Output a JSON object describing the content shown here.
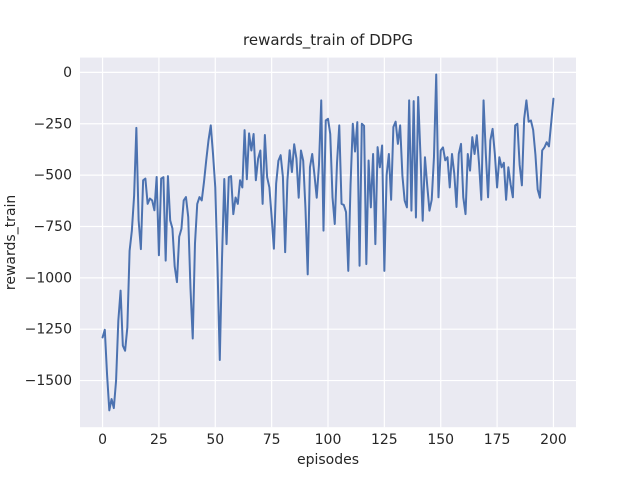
{
  "figure": {
    "title": "rewards_train of DDPG",
    "background_color": "#ffffff"
  },
  "chart_data": {
    "type": "line",
    "title": "rewards_train of DDPG",
    "xlabel": "episodes",
    "ylabel": "rewards_train",
    "legend": "none",
    "grid": true,
    "plot_bg_color": "#EAEAF2",
    "grid_color": "#ffffff",
    "line_color": "#4C72B0",
    "text_color": "#262626",
    "xlim": [
      -10,
      210
    ],
    "ylim": [
      -1727,
      72
    ],
    "x_ticks": [
      0,
      25,
      50,
      75,
      100,
      125,
      150,
      175,
      200
    ],
    "y_ticks": [
      0,
      -250,
      -500,
      -750,
      -1000,
      -1250,
      -1500
    ],
    "x_is_episode_index": true,
    "series": [
      {
        "name": "rewards_train",
        "values": [
          -1290,
          -1253,
          -1470,
          -1645,
          -1590,
          -1634,
          -1501,
          -1208,
          -1062,
          -1330,
          -1355,
          -1241,
          -868,
          -771,
          -600,
          -270,
          -720,
          -860,
          -525,
          -517,
          -640,
          -614,
          -623,
          -671,
          -509,
          -890,
          -517,
          -510,
          -916,
          -505,
          -720,
          -760,
          -945,
          -1021,
          -800,
          -761,
          -623,
          -607,
          -704,
          -1050,
          -1295,
          -834,
          -640,
          -607,
          -623,
          -533,
          -427,
          -330,
          -258,
          -397,
          -560,
          -950,
          -1400,
          -901,
          -519,
          -836,
          -510,
          -505,
          -690,
          -609,
          -640,
          -525,
          -560,
          -281,
          -520,
          -297,
          -380,
          -300,
          -525,
          -420,
          -380,
          -640,
          -305,
          -510,
          -560,
          -704,
          -858,
          -541,
          -430,
          -403,
          -509,
          -875,
          -525,
          -379,
          -485,
          -350,
          -420,
          -610,
          -380,
          -430,
          -660,
          -983,
          -462,
          -397,
          -500,
          -610,
          -450,
          -136,
          -770,
          -234,
          -226,
          -300,
          -608,
          -738,
          -440,
          -258,
          -640,
          -645,
          -680,
          -966,
          -547,
          -250,
          -385,
          -242,
          -941,
          -250,
          -260,
          -933,
          -429,
          -657,
          -397,
          -836,
          -364,
          -462,
          -356,
          -966,
          -500,
          -397,
          -620,
          -266,
          -240,
          -348,
          -258,
          -502,
          -624,
          -657,
          -136,
          -673,
          -140,
          -706,
          -120,
          -400,
          -722,
          -413,
          -550,
          -673,
          -620,
          -413,
          -10,
          -608,
          -380,
          -365,
          -428,
          -413,
          -560,
          -397,
          -492,
          -655,
          -397,
          -348,
          -608,
          -690,
          -397,
          -478,
          -315,
          -397,
          -306,
          -445,
          -620,
          -136,
          -397,
          -608,
          -331,
          -275,
          -397,
          -560,
          -413,
          -462,
          -440,
          -620,
          -462,
          -545,
          -608,
          -258,
          -250,
          -450,
          -550,
          -226,
          -136,
          -240,
          -234,
          -280,
          -400,
          -570,
          -610,
          -380,
          -365,
          -340,
          -360,
          -245,
          -128
        ]
      }
    ]
  }
}
